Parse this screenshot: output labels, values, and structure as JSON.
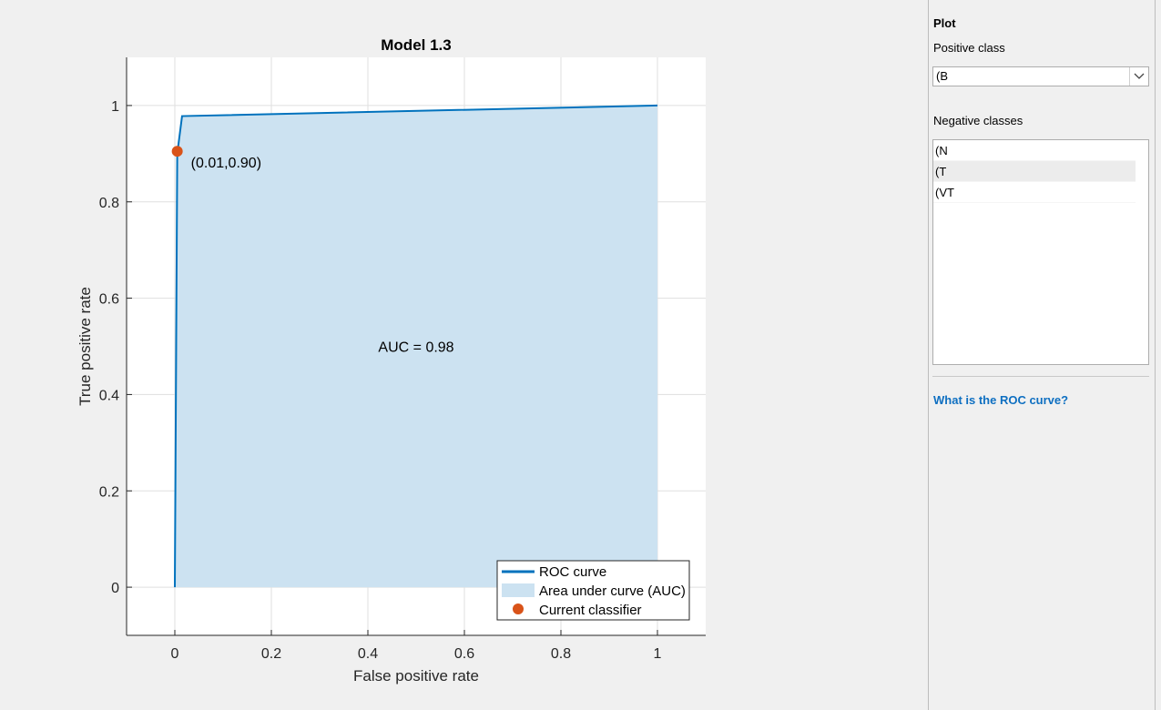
{
  "chart_data": {
    "type": "line",
    "title": "Model 1.3",
    "xlabel": "False positive rate",
    "ylabel": "True positive rate",
    "xlim": [
      -0.1,
      1.1
    ],
    "ylim": [
      -0.1,
      1.1
    ],
    "xticks": [
      0,
      0.2,
      0.4,
      0.6,
      0.8,
      1
    ],
    "xtick_labels": [
      "0",
      "0.2",
      "0.4",
      "0.6",
      "0.8",
      "1"
    ],
    "yticks": [
      0,
      0.2,
      0.4,
      0.6,
      0.8,
      1
    ],
    "ytick_labels": [
      "0",
      "0.2",
      "0.4",
      "0.6",
      "0.8",
      "1"
    ],
    "grid": true,
    "roc_curve": {
      "x": [
        0,
        0.005,
        0.015,
        1
      ],
      "y": [
        0,
        0.9,
        0.978,
        1.0
      ]
    },
    "current_classifier": {
      "x": 0.005,
      "y": 0.905
    },
    "current_classifier_label": "(0.01,0.90)",
    "auc_label": "AUC = 0.98",
    "legend": {
      "placement": "bottom-right",
      "entries": [
        "ROC curve",
        "Area under curve (AUC)",
        "Current classifier"
      ]
    },
    "colors": {
      "curve": "#0072bd",
      "area": "#cce2f1",
      "marker": "#d95319"
    }
  },
  "panel": {
    "title": "Plot",
    "positive_class_label": "Positive class",
    "positive_class_value": "(B",
    "negative_classes_label": "Negative classes",
    "negative_classes": [
      "(N",
      "(T",
      "(VT"
    ],
    "help_link": "What is the ROC curve?"
  }
}
